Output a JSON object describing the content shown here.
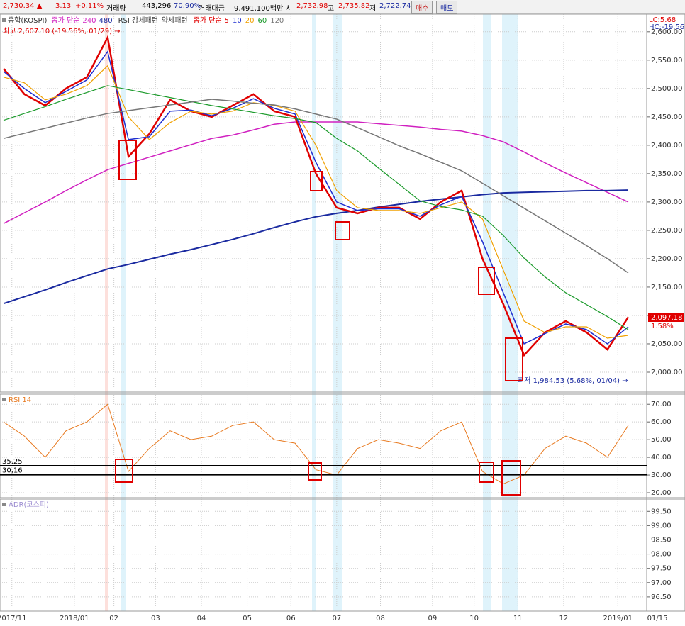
{
  "header": {
    "price": "2,730.34 ▲",
    "change": "3.13",
    "pct": "+0.11%",
    "volume_label": "거래량",
    "volume": "443,296",
    "vol_pct": "70.90%",
    "amount_label": "거래대금",
    "amount": "9,491,100백만",
    "open_label": "시",
    "open": "2,732.98",
    "high_label": "고",
    "high": "2,735.82",
    "low_label": "저",
    "low": "2,722.74",
    "buy": "매수",
    "sell": "매도"
  },
  "chart_data": [
    {
      "type": "line",
      "title": "종합(KOSPI)",
      "legend_prefix": "종가 단순",
      "rsi_pattern": "RSI 강세패턴",
      "weak_pattern": "약세패턴",
      "x": [
        0,
        1,
        2,
        3,
        4,
        5,
        6,
        7,
        8,
        9,
        10,
        11,
        12,
        13,
        14,
        15,
        16,
        17,
        18,
        19,
        20,
        21,
        22,
        23,
        24,
        25,
        26,
        27,
        28,
        29,
        30
      ],
      "xlim": [
        0,
        31.5
      ],
      "xticks": [
        {
          "value": 0.4,
          "label": "2017/11"
        },
        {
          "value": 3.4,
          "label": "2018/01"
        },
        {
          "value": 5.3,
          "label": "02"
        },
        {
          "value": 7.3,
          "label": "03"
        },
        {
          "value": 9.5,
          "label": "04"
        },
        {
          "value": 11.7,
          "label": "05"
        },
        {
          "value": 13.8,
          "label": "06"
        },
        {
          "value": 16,
          "label": "07"
        },
        {
          "value": 18.1,
          "label": "08"
        },
        {
          "value": 20.6,
          "label": "09"
        },
        {
          "value": 22.6,
          "label": "10"
        },
        {
          "value": 24.7,
          "label": "11"
        },
        {
          "value": 26.9,
          "label": "12"
        },
        {
          "value": 29.5,
          "label": "2019/01"
        },
        {
          "value": 31.4,
          "label": "01/15"
        }
      ],
      "ylim": [
        1965,
        2631
      ],
      "yticks": [
        {
          "value": 2000,
          "label": "2,000.00"
        },
        {
          "value": 2050,
          "label": "2,050.00"
        },
        {
          "value": 2100,
          "label": "2,100.00"
        },
        {
          "value": 2150,
          "label": "2,150.00"
        },
        {
          "value": 2200,
          "label": "2,200.00"
        },
        {
          "value": 2250,
          "label": "2,250.00"
        },
        {
          "value": 2300,
          "label": "2,300.00"
        },
        {
          "value": 2350,
          "label": "2,350.00"
        },
        {
          "value": 2400,
          "label": "2,400.00"
        },
        {
          "value": 2450,
          "label": "2,450.00"
        },
        {
          "value": 2500,
          "label": "2,500.00"
        },
        {
          "value": 2550,
          "label": "2,550.00"
        },
        {
          "value": 2600,
          "label": "2,600.00"
        }
      ],
      "series": [
        {
          "name": "240",
          "color": "#d020c0",
          "width": 1.5,
          "values": [
            2262,
            2281,
            2300,
            2320,
            2339,
            2357,
            2368,
            2379,
            2390,
            2401,
            2412,
            2418,
            2427,
            2437,
            2441,
            2441,
            2441,
            2441,
            2438,
            2435,
            2432,
            2428,
            2425,
            2417,
            2406,
            2388,
            2369,
            2351,
            2334,
            2317,
            2300
          ]
        },
        {
          "name": "480",
          "color": "#1a2aa0",
          "width": 2,
          "values": [
            2121,
            2133,
            2145,
            2158,
            2170,
            2182,
            2190,
            2199,
            2208,
            2216,
            2225,
            2234,
            2244,
            2255,
            2265,
            2274,
            2280,
            2285,
            2291,
            2296,
            2301,
            2305,
            2309,
            2313,
            2316,
            2317,
            2318,
            2319,
            2320,
            2320,
            2321
          ]
        },
        {
          "name": "5",
          "color": "#e00000",
          "width": 2.5,
          "values": [
            2535,
            2490,
            2470,
            2500,
            2520,
            2590,
            2380,
            2420,
            2480,
            2460,
            2450,
            2470,
            2490,
            2460,
            2450,
            2350,
            2290,
            2280,
            2290,
            2290,
            2270,
            2300,
            2320,
            2200,
            2120,
            2030,
            2070,
            2090,
            2070,
            2040,
            2097
          ]
        },
        {
          "name": "10",
          "color": "#1f2fd0",
          "width": 1.5,
          "values": [
            2530,
            2500,
            2475,
            2495,
            2515,
            2565,
            2410,
            2415,
            2460,
            2462,
            2452,
            2465,
            2482,
            2465,
            2455,
            2370,
            2300,
            2285,
            2288,
            2288,
            2275,
            2295,
            2310,
            2230,
            2140,
            2050,
            2068,
            2085,
            2075,
            2050,
            2080
          ]
        },
        {
          "name": "20",
          "color": "#f0a000",
          "width": 1.2,
          "values": [
            2520,
            2510,
            2480,
            2490,
            2505,
            2540,
            2450,
            2410,
            2440,
            2460,
            2455,
            2460,
            2475,
            2470,
            2460,
            2400,
            2320,
            2290,
            2285,
            2285,
            2280,
            2290,
            2300,
            2270,
            2180,
            2090,
            2070,
            2080,
            2080,
            2060,
            2065
          ]
        },
        {
          "name": "60",
          "color": "#1a9a2a",
          "width": 1.2,
          "values": [
            2444,
            2456,
            2468,
            2481,
            2493,
            2505,
            2498,
            2491,
            2484,
            2477,
            2470,
            2464,
            2458,
            2452,
            2447,
            2440,
            2412,
            2390,
            2360,
            2331,
            2302,
            2292,
            2286,
            2275,
            2241,
            2201,
            2168,
            2140,
            2119,
            2098,
            2075
          ]
        },
        {
          "name": "120",
          "color": "#777777",
          "width": 1.5,
          "values": [
            2412,
            2421,
            2430,
            2439,
            2448,
            2456,
            2461,
            2466,
            2471,
            2476,
            2481,
            2478,
            2474,
            2471,
            2464,
            2455,
            2446,
            2431,
            2415,
            2399,
            2385,
            2370,
            2355,
            2333,
            2311,
            2289,
            2267,
            2245,
            2223,
            2200,
            2175
          ]
        }
      ],
      "annotations": [
        "최고 2,607.10 (-19.56%, 01/29) →",
        "최저 1,984.53 (5.68%, 01/04) →"
      ],
      "corner_labels": [
        "LC:5.68",
        "HC:-19.56"
      ],
      "last_label": "2,097.18",
      "last_pct": "1.58%"
    },
    {
      "type": "line",
      "title": "RSI 14",
      "color": "#e87a20",
      "ylim": [
        17.2,
        75.7
      ],
      "yticks": [
        {
          "value": 20,
          "label": "20.00"
        },
        {
          "value": 30,
          "label": "30.00"
        },
        {
          "value": 40,
          "label": "40.00"
        },
        {
          "value": 50,
          "label": "50.00"
        },
        {
          "value": 60,
          "label": "60.00"
        },
        {
          "value": 70,
          "label": "70.00"
        }
      ],
      "levels": [
        {
          "value": 35.25,
          "label": "35,25"
        },
        {
          "value": 30.16,
          "label": "30,16"
        }
      ],
      "values": [
        60,
        52,
        40,
        55,
        60,
        70,
        32,
        45,
        55,
        50,
        52,
        58,
        60,
        50,
        48,
        33,
        30,
        45,
        50,
        48,
        45,
        55,
        60,
        32,
        25,
        30,
        45,
        52,
        48,
        40,
        58
      ]
    },
    {
      "type": "line",
      "title": "ADR(코스피)",
      "ylim": [
        96.0,
        99.93
      ],
      "yticks": [
        {
          "value": 96.5,
          "label": "96.50"
        },
        {
          "value": 97,
          "label": "97.00"
        },
        {
          "value": 97.5,
          "label": "97.50"
        },
        {
          "value": 98,
          "label": "98.00"
        },
        {
          "value": 98.5,
          "label": "98.50"
        },
        {
          "value": 99,
          "label": "99.00"
        },
        {
          "value": 99.5,
          "label": "99.50"
        }
      ]
    }
  ]
}
